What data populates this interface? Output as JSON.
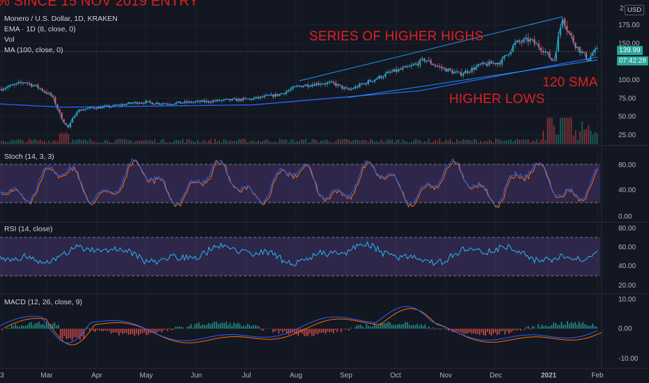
{
  "header_banner": "%  SINCE 15 NOV 2019 ENTRY",
  "legend": {
    "symbol": "Monero / U.S. Dollar, 1D, KRAKEN",
    "ema": "EMA · 1D (8, close, 0)",
    "vol": "Vol",
    "ma": "MA (100, close, 0)"
  },
  "currency_button": "USD",
  "price_axis": {
    "top_label": "2",
    "ticks": [
      "175.00",
      "150.00",
      "100.00",
      "75.00",
      "50.00",
      "25.00"
    ],
    "current_price": "139.99",
    "countdown": "07:42:28"
  },
  "annotations": {
    "higher_highs": "SERIES OF HIGHER HIGHS",
    "sma": "120 SMA",
    "higher_lows": "HIGHER LOWS"
  },
  "stoch": {
    "label": "Stoch (14, 3, 3)",
    "ticks": [
      "80.00",
      "40.00",
      "0.00"
    ]
  },
  "rsi": {
    "label": "RSI (14, close)",
    "ticks": [
      "80.00",
      "60.00",
      "40.00",
      "20.00"
    ]
  },
  "macd": {
    "label": "MACD (12, 26, close, 9)",
    "ticks": [
      "10.00",
      "0.00",
      "-10.00"
    ]
  },
  "time_axis": [
    "3",
    "Mar",
    "Apr",
    "May",
    "Jun",
    "Jul",
    "Aug",
    "Sep",
    "Oct",
    "Nov",
    "Dec",
    "2021",
    "Feb"
  ],
  "colors": {
    "background": "#131722",
    "up": "#26a69a",
    "down": "#ef5350",
    "ma_line": "#2962ff",
    "ema_line": "#2196f3",
    "annotation": "#e0201e",
    "band": "#7e57c2"
  },
  "chart_data": {
    "type": "line",
    "price": {
      "x": [
        "Feb",
        "Mar",
        "Apr",
        "May",
        "Jun",
        "Jul",
        "Aug",
        "Sep",
        "Oct",
        "Nov",
        "Dec",
        "2021",
        "Feb"
      ],
      "close": [
        80,
        55,
        60,
        70,
        68,
        72,
        95,
        90,
        115,
        110,
        145,
        160,
        140
      ],
      "ma100": [
        65,
        62,
        61,
        62,
        64,
        68,
        74,
        82,
        90,
        98,
        108,
        120,
        128
      ]
    },
    "stoch_range": [
      0,
      100
    ],
    "rsi_range": [
      20,
      85
    ],
    "macd_range": [
      -12,
      12
    ]
  }
}
